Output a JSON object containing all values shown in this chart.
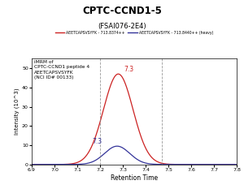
{
  "title": "CPTC-CCND1-5",
  "subtitle": "(FSAI076-2E4)",
  "legend_light": "AEETCAPSVSYFK - 713.8374++",
  "legend_heavy": "AEETCAPSVSYFK - 713.8440++ (heavy)",
  "annotation_text": "iMRM of\nCPTC-CCND1 peptide 4\nAEETCAPSVSYFK\n(NCI ID# 00133)",
  "xlabel": "Retention Time",
  "ylabel": "Intensity (10^3)",
  "xlim": [
    6.9,
    7.8
  ],
  "ylim": [
    0,
    55
  ],
  "yticks": [
    0,
    10,
    20,
    30,
    40,
    50
  ],
  "xticks": [
    6.9,
    7.0,
    7.1,
    7.2,
    7.3,
    7.4,
    7.5,
    7.6,
    7.7,
    7.8
  ],
  "light_color": "#cc2222",
  "heavy_color": "#333399",
  "light_peak_x": 7.28,
  "light_peak_y": 47,
  "heavy_peak_x": 7.275,
  "heavy_peak_y": 9.5,
  "light_sigma": 0.065,
  "heavy_sigma": 0.055,
  "light_peak_label": "7.3",
  "heavy_peak_label": "7.3",
  "vline1_x": 7.2,
  "vline2_x": 7.47,
  "background_color": "#ffffff",
  "plot_bg_color": "#ffffff"
}
